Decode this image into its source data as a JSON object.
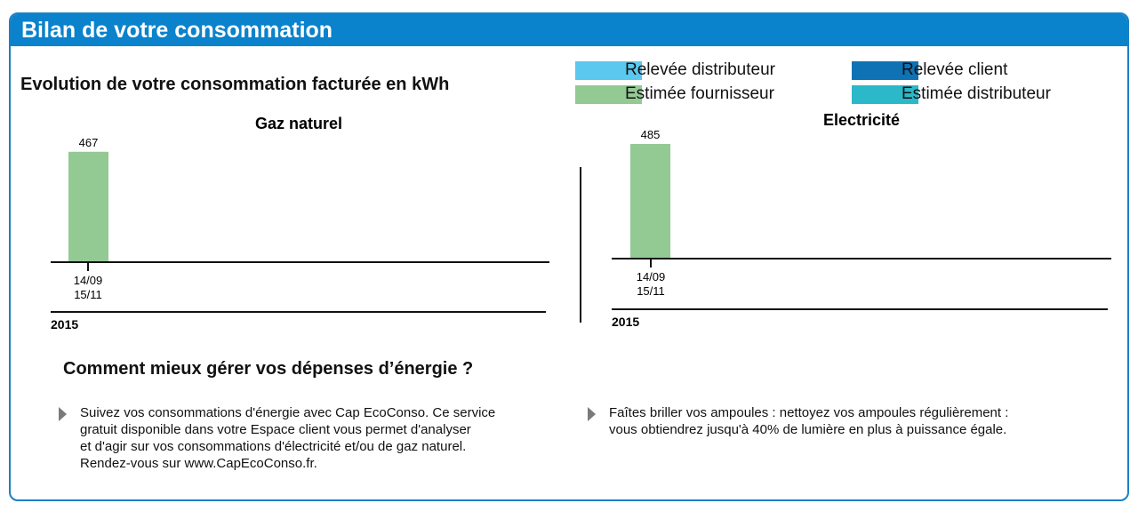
{
  "header": {
    "title": "Bilan de votre consommation"
  },
  "section_title": "Evolution de votre consommation facturée en kWh",
  "legend": [
    {
      "label": "Relevée distributeur",
      "color": "#5bc8ef"
    },
    {
      "label": "Relevée client",
      "color": "#0f72b5"
    },
    {
      "label": "Estimée fournisseur",
      "color": "#93c993"
    },
    {
      "label": "Estimée distributeur",
      "color": "#2bb8c8"
    }
  ],
  "chart_data": [
    {
      "type": "bar",
      "title": "Gaz naturel",
      "categories": [
        [
          "14/09",
          "15/11"
        ]
      ],
      "series": [
        {
          "name": "Estimée fournisseur",
          "values": [
            467
          ]
        }
      ],
      "year": "2015",
      "ylim": [
        0,
        500
      ]
    },
    {
      "type": "bar",
      "title": "Electricité",
      "categories": [
        [
          "14/09",
          "15/11"
        ]
      ],
      "series": [
        {
          "name": "Estimée fournisseur",
          "values": [
            485
          ]
        }
      ],
      "year": "2015",
      "ylim": [
        0,
        500
      ]
    }
  ],
  "advice": {
    "title": "Comment mieux gérer vos dépenses d’énergie ?",
    "tips": [
      {
        "lines": [
          "Suivez vos consommations d'énergie avec Cap EcoConso. Ce service",
          "gratuit disponible dans votre Espace client vous permet d'analyser",
          "et d'agir sur vos consommations d'électricité et/ou de gaz naturel.",
          "Rendez-vous sur www.CapEcoConso.fr."
        ]
      },
      {
        "lines": [
          "Faîtes briller vos ampoules : nettoyez vos ampoules régulièrement :",
          "vous obtiendrez jusqu'à 40% de lumière en plus à puissance égale."
        ]
      }
    ]
  }
}
